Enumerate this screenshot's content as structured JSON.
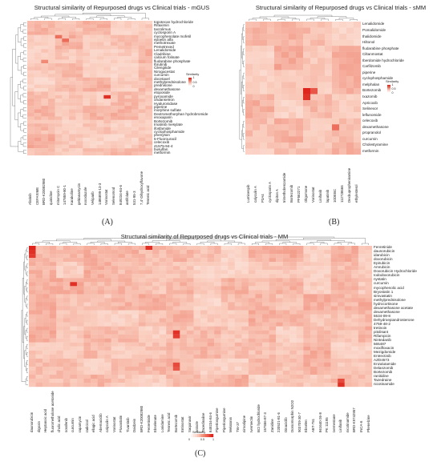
{
  "chart_data": [
    {
      "type": "heatmap",
      "panel_label": "(A)",
      "title": "Structural similarity of Repurposed drugs vs Clinical trials - mGUS",
      "legend_title": "Similarity",
      "legend_ticks": [
        "1",
        "0.5",
        "0"
      ],
      "color_low": "#ffffff",
      "color_high": "#e0241c",
      "row_labels": [
        "topotecan hydrochloride",
        "Rifaximin",
        "tacrolimus",
        "cyclosporin A",
        "mycophenolate mofetil",
        "epoetin alfa",
        "methotrexate",
        "Pemetrexed",
        "Lenalidomide",
        "Cladribine",
        "calcium folinate",
        "fludarabine phosphate",
        "Ibrutinib",
        "Cilengitide",
        "Nirogacestat",
        "curcumin",
        "docetaxel",
        "methylprednisolone",
        "prednisone",
        "dexamethasone",
        "etoposide",
        "pyroxamide",
        "ondansetron",
        "Hyaluronidase",
        "piperine",
        "morphine sulfate",
        "Dextromethorphan hydrobromide",
        "enoxaparin",
        "Bortezomib",
        "Imatinib mesylate",
        "ifosfamide",
        "cyclophosphamide",
        "phenytoin",
        "5-Fluorouracil",
        "celecoxib",
        "41575-94-4",
        "busulfan",
        "metformin"
      ],
      "col_labels": [
        "Afatinib",
        "CEFAXIME",
        "BRD-K20082980",
        "quinidine",
        "mitomycin C",
        "147859-80-1",
        "Karakoline",
        "geldanamycin",
        "nocodazole",
        "Veliparib",
        "1486899-13-3",
        "Vorinostat",
        "Selenomod",
        "849234-84-6",
        "antifolate",
        "531-95-3",
        "7,4'-Dihydroxyflavone",
        "Tenneic acid"
      ],
      "values": []
    },
    {
      "type": "heatmap",
      "panel_label": "(B)",
      "title": "Structural similarity of Repurposed drugs vs Clinical trials - sMM",
      "legend_title": "Similarity",
      "legend_ticks": [
        "1",
        "0.5",
        "0"
      ],
      "color_low": "#ffffff",
      "color_high": "#e0241c",
      "row_labels": [
        "Lenalidomide",
        "Pomalidomide",
        "thalidomide",
        "Hiltonol",
        "fludarabine phosphate",
        "Ciltanmostat",
        "Iberdomide hydrochloride",
        "Carfilzomib",
        "piperine",
        "cyclophosphamide",
        "melphalan",
        "Bortezomib",
        "Ixazomib",
        "Apricoxib",
        "Selinexor",
        "leflunomide",
        "celecoxib",
        "dexamethasone",
        "propranolol",
        "curcumin",
        "Cholestyramine",
        "metformin"
      ],
      "col_labels": [
        "Luminespib",
        "calyculin A",
        "P3A4",
        "cyclosporin A",
        "dipiton A",
        "trimethobenzamide",
        "Bortezomib",
        "PF562271",
        "Oligomone",
        "Vorinostat",
        "Linifanib",
        "lapatinib",
        "10DEBC",
        "112728666",
        "Dexbupropheniramine",
        "ethylesterol"
      ],
      "values": []
    },
    {
      "type": "heatmap",
      "panel_label": "(C)",
      "title": "Structural similarity of Repurposed drugs vs Clinical trials - MM",
      "legend_title": "Similarity",
      "legend_ticks": [
        "0",
        "0.5",
        "1"
      ],
      "color_low": "#ffffff",
      "color_high": "#e0241c",
      "row_labels": [
        "Fenretinide",
        "daunorubicin",
        "idarubicin",
        "doxorubicin",
        "Epirubicin",
        "Amrubicin",
        "Doxorubicin Hydrochloride",
        "Iododoxorubicin",
        "nystatin",
        "curcumin",
        "mycophenolic acid",
        "Bryostatin 1",
        "simvastatin",
        "methylprednisolone",
        "hydrocortisone",
        "dexamethasone acetate",
        "dexamethasone",
        "5534-09-8",
        "Dehydroepiandrosterone",
        "4759-48-2",
        "tretinoin",
        "pitolisant",
        "Rifampicin",
        "Nintedanib",
        "565487",
        "moxifloxacin",
        "Mezigdomide",
        "Entrectinib",
        "AZD4573",
        "Enzalutamide",
        "Delanzomib",
        "Bortezomib",
        "ranitidine",
        "Tazedraine",
        "nicotinamide"
      ],
      "col_labels": [
        "daunorubicin",
        "digoxin",
        "Heptanoic acid",
        "fluorometholone acetonide",
        "cholic acid",
        "sorafenib",
        "curcumin",
        "rapamycin",
        "radicicol",
        "ellagic acid",
        "Abemaciclib",
        "calyculin A",
        "Vorinostat",
        "Fluvastatin",
        "Tivantinib",
        "Daidzein",
        "BRD-K20082980",
        "Fenretinide",
        "Ebselenate",
        "Lonidamine",
        "Tenneic acid",
        "Bortezomib",
        "Entinostat",
        "Saquinavir",
        "anisole",
        "Tacedinaline",
        "849234-84-6",
        "Piperlongumine",
        "Piperlongumine",
        "Melatonin",
        "TW-37",
        "nimodipine",
        "Ivermectin",
        "BCI hydrochloride",
        "157556-87-3",
        "Zanidine",
        "220521-81-6",
        "Dinaciclib",
        "Dorsomorphin N2O2",
        "903709-30-7",
        "Ebselen",
        "ABT-751",
        "861640-26-8",
        "PK 11195",
        "Ixemestane",
        "Linifanib",
        "nicotinamide",
        "BRD-K9742957",
        "INCA-6",
        "Phenelzine"
      ],
      "values": []
    }
  ]
}
